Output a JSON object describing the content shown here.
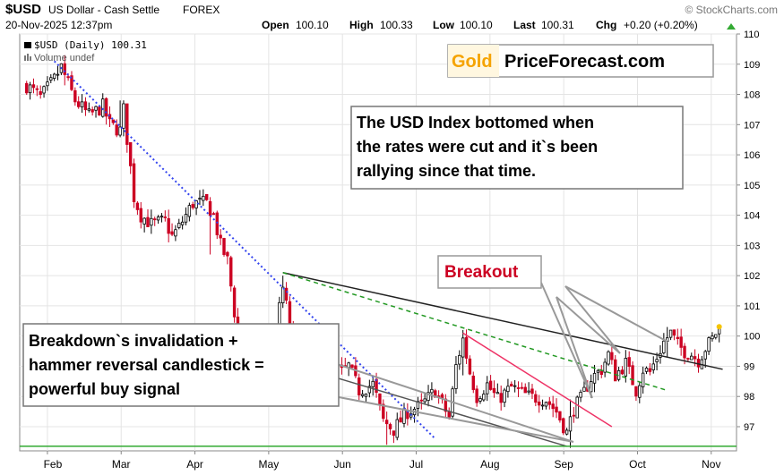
{
  "header": {
    "symbol": "$USD",
    "name": "US Dollar - Cash Settle",
    "exchange": "FOREX",
    "date": "20-Nov-2025 12:37pm",
    "watermark": "© StockCharts.com",
    "open_label": "Open",
    "open": "100.10",
    "high_label": "High",
    "high": "100.33",
    "low_label": "Low",
    "low": "100.10",
    "last_label": "Last",
    "last": "100.31",
    "chg_label": "Chg",
    "chg": "+0.20 (+0.20%)",
    "chg_icon": "up-triangle-icon"
  },
  "legend": {
    "series": "$USD (Daily) 100.31",
    "volume": "Volume undef"
  },
  "brand": {
    "gold": "Gold",
    "rest": "PriceForecast.com",
    "gold_color": "#f5a300"
  },
  "annotations": {
    "top_right": [
      "The USD Index bottomed when",
      "the rates were cut and it`s been",
      "rallying since that time."
    ],
    "breakout": "Breakout",
    "bottom_left": [
      "Breakdown`s invalidation +",
      "hammer reversal candlestick =",
      "powerful buy signal"
    ]
  },
  "colors": {
    "up": "#000000",
    "down": "#cc0022",
    "support": "#33aa33",
    "downtrend": "#3344ee",
    "green_dash": "#229922",
    "resistance": "#222222",
    "red_trend": "#ee3366"
  },
  "chart_data": {
    "type": "candlestick",
    "x_ticks": [
      "Feb",
      "Mar",
      "Apr",
      "May",
      "Jun",
      "Jul",
      "Aug",
      "Sep",
      "Oct",
      "Nov"
    ],
    "y_ticks": [
      97,
      98,
      99,
      100,
      101,
      102,
      103,
      104,
      105,
      106,
      107,
      108,
      109,
      110
    ],
    "ylim": [
      96.2,
      110
    ],
    "xlim": [
      -2,
      205
    ],
    "last": 100.31,
    "support_level": 96.35,
    "keyframes": [
      [
        0,
        108.3
      ],
      [
        4,
        107.9
      ],
      [
        8,
        108.5
      ],
      [
        10,
        108.9
      ],
      [
        14,
        107.8
      ],
      [
        18,
        107.3
      ],
      [
        22,
        107.6
      ],
      [
        24,
        107.0
      ],
      [
        27,
        106.8
      ],
      [
        28,
        107.5
      ],
      [
        31,
        104.6
      ],
      [
        33,
        104.0
      ],
      [
        36,
        103.7
      ],
      [
        40,
        103.8
      ],
      [
        42,
        103.3
      ],
      [
        44,
        103.6
      ],
      [
        48,
        104.4
      ],
      [
        52,
        104.4
      ],
      [
        54,
        104.0
      ],
      [
        56,
        103.0
      ],
      [
        58,
        102.5
      ],
      [
        60,
        100.8
      ],
      [
        62,
        99.8
      ],
      [
        64,
        99.3
      ],
      [
        67,
        99.1
      ],
      [
        70,
        99.4
      ],
      [
        72,
        100.2
      ],
      [
        74,
        101.6
      ],
      [
        76,
        100.4
      ],
      [
        78,
        99.8
      ],
      [
        80,
        99.9
      ],
      [
        84,
        99.6
      ],
      [
        87,
        99.2
      ],
      [
        91,
        98.8
      ],
      [
        93,
        99.0
      ],
      [
        96,
        98.2
      ],
      [
        100,
        98.4
      ],
      [
        103,
        97.2
      ],
      [
        106,
        96.9
      ],
      [
        110,
        97.5
      ],
      [
        114,
        97.7
      ],
      [
        118,
        98.2
      ],
      [
        122,
        97.3
      ],
      [
        124,
        99.0
      ],
      [
        126,
        99.9
      ],
      [
        128,
        98.8
      ],
      [
        130,
        98.0
      ],
      [
        133,
        98.4
      ],
      [
        136,
        97.9
      ],
      [
        140,
        98.3
      ],
      [
        145,
        98.0
      ],
      [
        150,
        97.9
      ],
      [
        153,
        97.5
      ],
      [
        156,
        96.8
      ],
      [
        158,
        97.6
      ],
      [
        160,
        97.9
      ],
      [
        163,
        98.6
      ],
      [
        166,
        98.9
      ],
      [
        168,
        99.4
      ],
      [
        170,
        98.7
      ],
      [
        173,
        99.1
      ],
      [
        176,
        98.2
      ],
      [
        178,
        98.9
      ],
      [
        180,
        98.8
      ],
      [
        182,
        99.3
      ],
      [
        184,
        99.8
      ],
      [
        186,
        100.1
      ],
      [
        188,
        99.7
      ],
      [
        190,
        99.5
      ],
      [
        192,
        99.4
      ],
      [
        194,
        99.2
      ],
      [
        196,
        99.6
      ],
      [
        198,
        99.9
      ],
      [
        200,
        100.31
      ]
    ],
    "events": [
      [
        11,
        109.3,
        108.3
      ],
      [
        27,
        107.8,
        106.9
      ],
      [
        53,
        104.6,
        102.7
      ],
      [
        74,
        102.0,
        101.0
      ],
      [
        104,
        97.5,
        96.4
      ],
      [
        126,
        100.2,
        98.7
      ],
      [
        157,
        97.9,
        96.3
      ],
      [
        185,
        100.3,
        99.3
      ]
    ],
    "lines": [
      {
        "name": "downtrend",
        "from": [
          8,
          109.1
        ],
        "to": [
          118,
          96.6
        ]
      },
      {
        "name": "resistance",
        "from": [
          74,
          102.1
        ],
        "to": [
          201,
          98.9
        ]
      },
      {
        "name": "green-dashed",
        "from": [
          74,
          102.1
        ],
        "to": [
          185,
          98.2
        ]
      },
      {
        "name": "red-trend",
        "from": [
          126,
          100.1
        ],
        "to": [
          169,
          97.0
        ]
      },
      {
        "name": "support-trend",
        "from": [
          90,
          98.6
        ],
        "to": [
          156,
          96.35
        ]
      }
    ]
  }
}
